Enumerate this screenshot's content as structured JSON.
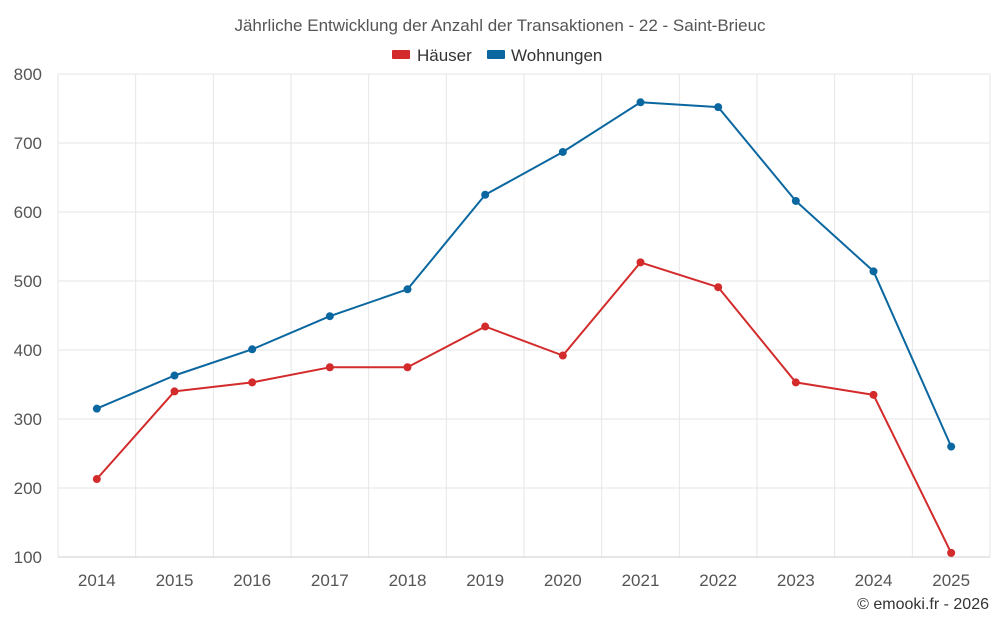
{
  "chart_data": {
    "type": "line",
    "title": "Jährliche Entwicklung der Anzahl der Transaktionen - 22 - Saint-Brieuc",
    "categories": [
      "2014",
      "2015",
      "2016",
      "2017",
      "2018",
      "2019",
      "2020",
      "2021",
      "2022",
      "2023",
      "2024",
      "2025"
    ],
    "series": [
      {
        "name": "Häuser",
        "color": "#d32b2b",
        "values": [
          213,
          340,
          353,
          375,
          375,
          434,
          392,
          527,
          491,
          353,
          335,
          106
        ]
      },
      {
        "name": "Wohnungen",
        "color": "#0b67a0",
        "values": [
          315,
          363,
          401,
          449,
          488,
          625,
          687,
          759,
          752,
          616,
          514,
          260
        ]
      }
    ],
    "ylim": [
      100,
      800
    ],
    "yticks": [
      100,
      200,
      300,
      400,
      500,
      600,
      700,
      800
    ],
    "xlabel": "",
    "ylabel": "",
    "grid": true,
    "legend_position": "top-center"
  },
  "credit": "© emooki.fr - 2026"
}
